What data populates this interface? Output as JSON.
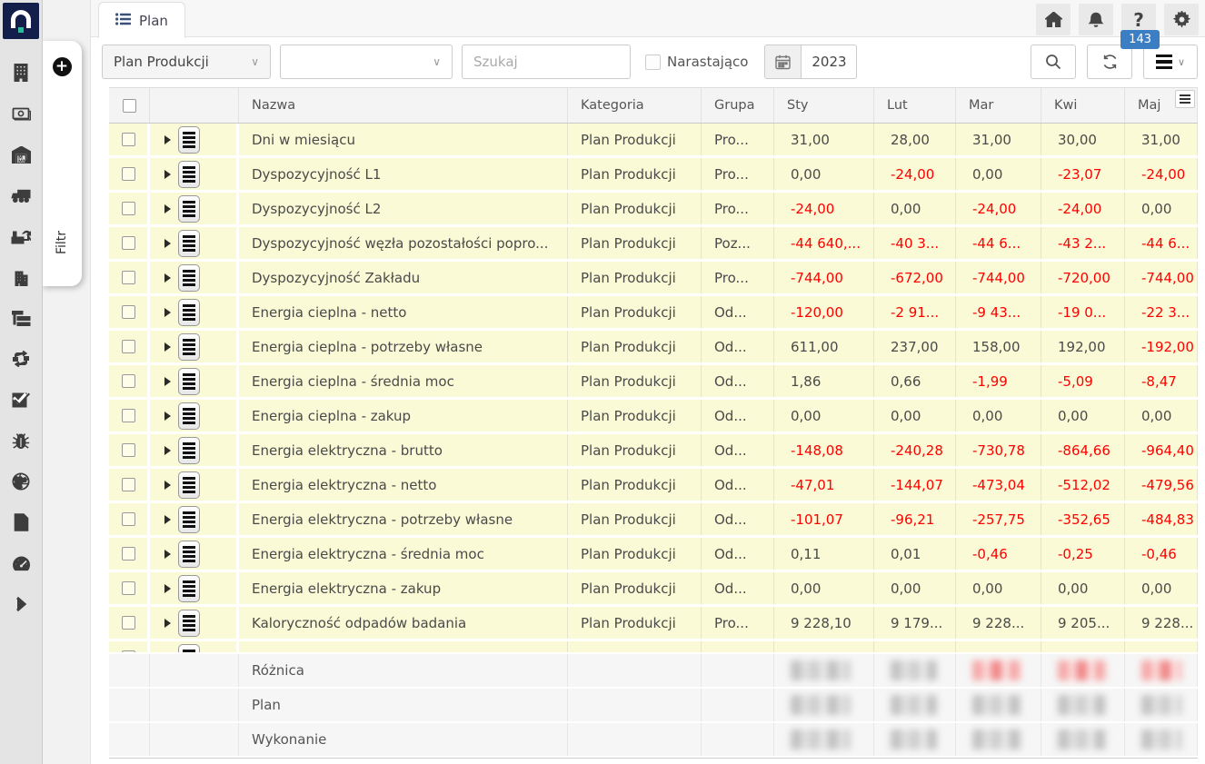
{
  "colors": {
    "logo_bg": "#141e4b",
    "logo_accent": "#2abb9b",
    "badge_blue": "#3c7ec4",
    "negative_red": "#ff0000",
    "row_yellow": "#fafad6"
  },
  "topbar": {
    "tab": {
      "label": "Plan"
    },
    "actions": [
      {
        "icon": "home-icon"
      },
      {
        "icon": "notifications-bell-icon"
      },
      {
        "icon": "help-icon"
      },
      {
        "icon": "settings-gear-icon"
      }
    ],
    "help_badge": "143"
  },
  "sidebar": {
    "items": [
      {
        "icon": "building-grid-icon"
      },
      {
        "icon": "banknote-icon"
      },
      {
        "icon": "warehouse-icon"
      },
      {
        "icon": "truck-icon"
      },
      {
        "icon": "production-icon"
      },
      {
        "icon": "office-building-icon"
      },
      {
        "icon": "structure-tree-icon"
      },
      {
        "icon": "process-loop-icon"
      },
      {
        "icon": "task-check-icon"
      },
      {
        "icon": "bug-icon"
      },
      {
        "icon": "globe-icon"
      },
      {
        "icon": "report-document-icon"
      },
      {
        "icon": "dashboard-gauge-icon"
      },
      {
        "icon": "expand-sidebar-icon"
      }
    ],
    "filter_panel": {
      "label": "Filtr",
      "add_button": "+"
    }
  },
  "toolbar": {
    "dataset_select": {
      "value": "Plan Produkcji"
    },
    "secondary_select": {
      "value": ""
    },
    "search": {
      "placeholder": "Szukaj"
    },
    "cumulative_checkbox": {
      "label": "Narastająco",
      "checked": false
    },
    "year_picker": {
      "value": "2023"
    }
  },
  "table": {
    "columns": [
      "",
      "",
      "Nazwa",
      "Kategoria",
      "Grupa",
      "Sty",
      "Lut",
      "Mar",
      "Kwi",
      "Maj"
    ],
    "rows": [
      {
        "name": "Dni w miesiącu",
        "category": "Plan Produkcji",
        "group": "Pro...",
        "values": [
          "31,00",
          "28,00",
          "31,00",
          "30,00",
          "31,00"
        ],
        "tones": [
          "d",
          "d",
          "d",
          "d",
          "d"
        ]
      },
      {
        "name": "Dyspozycyjność L1",
        "category": "Plan Produkcji",
        "group": "Pro...",
        "values": [
          "0,00",
          "-24,00",
          "0,00",
          "-23,07",
          "-24,00"
        ],
        "tones": [
          "d",
          "r",
          "d",
          "r",
          "r"
        ]
      },
      {
        "name": "Dyspozycyjność L2",
        "category": "Plan Produkcji",
        "group": "Pro...",
        "values": [
          "-24,00",
          "0,00",
          "-24,00",
          "-24,00",
          "0,00"
        ],
        "tones": [
          "r",
          "d",
          "r",
          "r",
          "d"
        ]
      },
      {
        "name": "Dyspozycyjność węzła pozostałości popro...",
        "category": "Plan Produkcji",
        "group": "Poz...",
        "values": [
          "-44 640,...",
          "-40 3...",
          "-44 6...",
          "-43 2...",
          "-44 6..."
        ],
        "tones": [
          "r",
          "r",
          "r",
          "r",
          "r"
        ]
      },
      {
        "name": "Dyspozycyjność Zakładu",
        "category": "Plan Produkcji",
        "group": "Pro...",
        "values": [
          "-744,00",
          "-672,00",
          "-744,00",
          "-720,00",
          "-744,00"
        ],
        "tones": [
          "r",
          "r",
          "r",
          "r",
          "r"
        ]
      },
      {
        "name": "Energia cieplna - netto",
        "category": "Plan Produkcji",
        "group": "Od...",
        "values": [
          "-120,00",
          "-2 91...",
          "-9 43...",
          "-19 0...",
          "-22 3..."
        ],
        "tones": [
          "r",
          "r",
          "r",
          "r",
          "r"
        ]
      },
      {
        "name": "Energia cieplna - potrzeby własne",
        "category": "Plan Produkcji",
        "group": "Od...",
        "values": [
          "611,00",
          "237,00",
          "158,00",
          "192,00",
          "-192,00"
        ],
        "tones": [
          "d",
          "d",
          "d",
          "d",
          "r"
        ]
      },
      {
        "name": "Energia cieplna - średnia moc",
        "category": "Plan Produkcji",
        "group": "Od...",
        "values": [
          "1,86",
          "0,66",
          "-1,99",
          "-5,09",
          "-8,47"
        ],
        "tones": [
          "d",
          "d",
          "r",
          "r",
          "r"
        ]
      },
      {
        "name": "Energia cieplna - zakup",
        "category": "Plan Produkcji",
        "group": "Od...",
        "values": [
          "0,00",
          "0,00",
          "0,00",
          "0,00",
          "0,00"
        ],
        "tones": [
          "d",
          "d",
          "d",
          "d",
          "d"
        ]
      },
      {
        "name": "Energia elektryczna - brutto",
        "category": "Plan Produkcji",
        "group": "Od...",
        "values": [
          "-148,08",
          "-240,28",
          "-730,78",
          "-864,66",
          "-964,40"
        ],
        "tones": [
          "r",
          "r",
          "r",
          "r",
          "r"
        ]
      },
      {
        "name": "Energia elektryczna - netto",
        "category": "Plan Produkcji",
        "group": "Od...",
        "values": [
          "-47,01",
          "-144,07",
          "-473,04",
          "-512,02",
          "-479,56"
        ],
        "tones": [
          "r",
          "r",
          "r",
          "r",
          "r"
        ]
      },
      {
        "name": "Energia elektryczna - potrzeby własne",
        "category": "Plan Produkcji",
        "group": "Od...",
        "values": [
          "-101,07",
          "-96,21",
          "-257,75",
          "-352,65",
          "-484,83"
        ],
        "tones": [
          "r",
          "r",
          "r",
          "r",
          "r"
        ]
      },
      {
        "name": "Energia elektryczna - średnia moc",
        "category": "Plan Produkcji",
        "group": "Od...",
        "values": [
          "0,11",
          "0,01",
          "-0,46",
          "-0,25",
          "-0,46"
        ],
        "tones": [
          "d",
          "d",
          "r",
          "r",
          "r"
        ]
      },
      {
        "name": "Energia elektryczna - zakup",
        "category": "Plan Produkcji",
        "group": "Od...",
        "values": [
          "0,00",
          "0,00",
          "0,00",
          "0,00",
          "0,00"
        ],
        "tones": [
          "d",
          "d",
          "d",
          "d",
          "d"
        ]
      },
      {
        "name": "Kaloryczność odpadów badania",
        "category": "Plan Produkcji",
        "group": "Pro...",
        "values": [
          "9 228,10",
          "9 179...",
          "9 228...",
          "9 205...",
          "9 228..."
        ],
        "tones": [
          "d",
          "d",
          "d",
          "d",
          "d"
        ]
      }
    ],
    "summary_rows": [
      {
        "label": "Różnica",
        "blurred": true,
        "tones": [
          "gray",
          "gray",
          "red",
          "red",
          "red"
        ]
      },
      {
        "label": "Plan",
        "blurred": true,
        "tones": [
          "gray",
          "gray",
          "gray",
          "gray",
          "gray"
        ]
      },
      {
        "label": "Wykonanie",
        "blurred": true,
        "tones": [
          "gray",
          "gray",
          "gray",
          "gray",
          "gray"
        ]
      }
    ]
  }
}
